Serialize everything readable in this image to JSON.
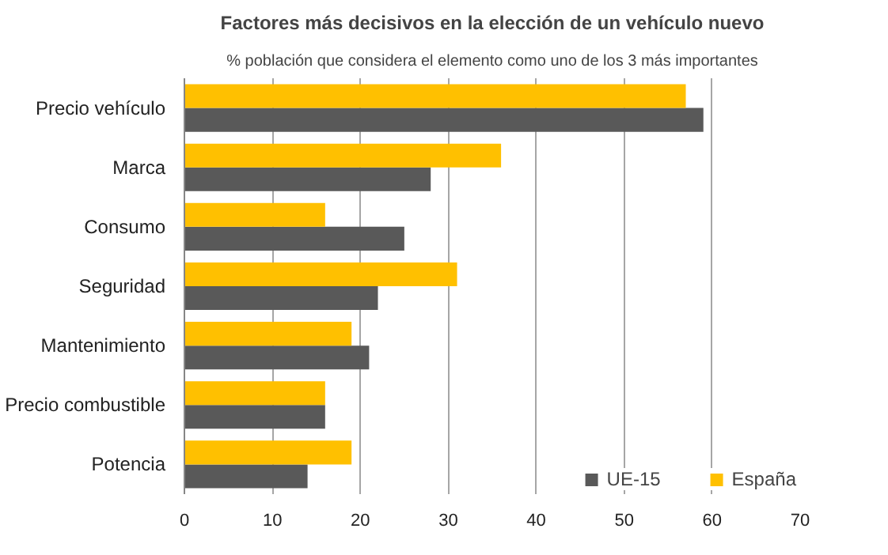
{
  "chart_data": {
    "type": "bar",
    "orientation": "horizontal",
    "title": "Factores más decisivos en la elección de un vehículo nuevo",
    "subtitle": "% población que considera el elemento como uno de los 3 más importantes",
    "categories": [
      "Precio vehículo",
      "Marca",
      "Consumo",
      "Seguridad",
      "Mantenimiento",
      "Precio combustible",
      "Potencia"
    ],
    "series": [
      {
        "name": "UE-15",
        "color": "#595959",
        "values": [
          59,
          28,
          25,
          22,
          21,
          16,
          14
        ]
      },
      {
        "name": "España",
        "color": "#ffc000",
        "values": [
          57,
          36,
          16,
          31,
          19,
          16,
          19
        ]
      }
    ],
    "xlim": [
      0,
      70
    ],
    "xticks": [
      0,
      10,
      20,
      30,
      40,
      50,
      60,
      70
    ],
    "grid": "x",
    "legend": "bottom"
  }
}
